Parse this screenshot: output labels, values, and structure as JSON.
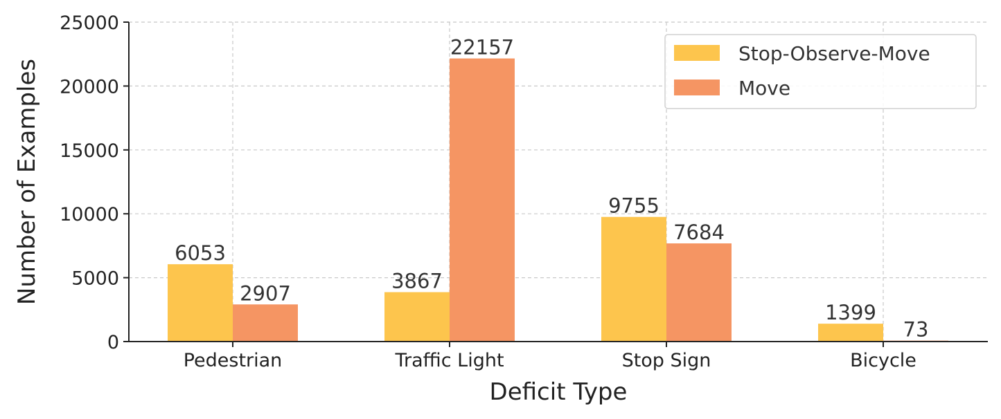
{
  "chart_data": {
    "type": "bar",
    "categories": [
      "Pedestrian",
      "Traffic Light",
      "Stop Sign",
      "Bicycle"
    ],
    "series": [
      {
        "name": "Stop-Observe-Move",
        "values": [
          6053,
          3867,
          9755,
          1399
        ],
        "color": "#fdc54d"
      },
      {
        "name": "Move",
        "values": [
          2907,
          22157,
          7684,
          73
        ],
        "color": "#f59563"
      }
    ],
    "xlabel": "Deficit Type",
    "ylabel": "Number of Examples",
    "ylim": [
      0,
      25000
    ],
    "yticks": [
      0,
      5000,
      10000,
      15000,
      20000,
      25000
    ],
    "grid": true,
    "legend_position": "top-right"
  }
}
